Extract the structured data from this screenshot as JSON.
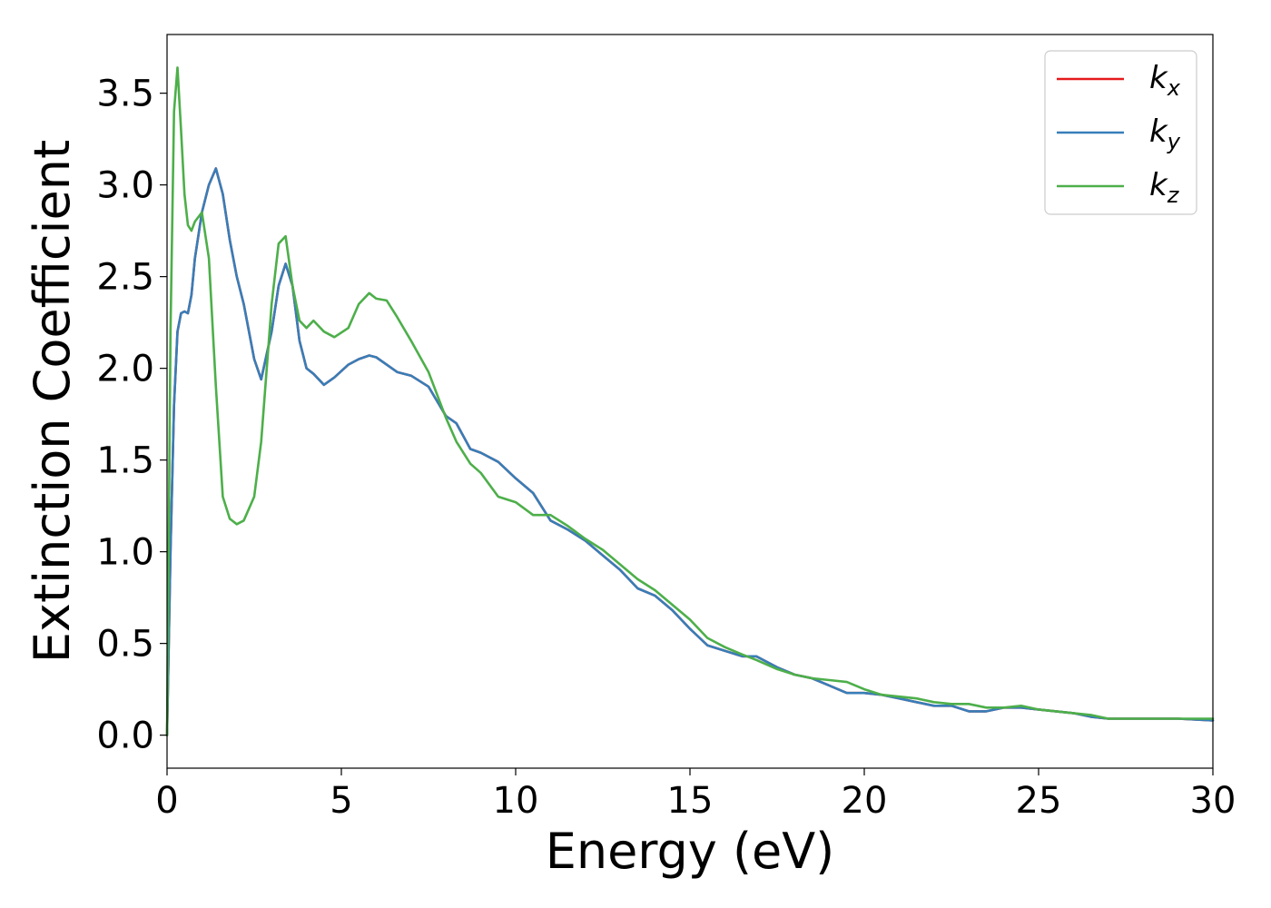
{
  "chart_data": {
    "type": "line",
    "title": "",
    "xlabel": "Energy (eV)",
    "ylabel": "Extinction Coefficient",
    "xlim": [
      0,
      30
    ],
    "ylim": [
      -0.18,
      3.82
    ],
    "xticks": [
      0,
      5,
      10,
      15,
      20,
      25,
      30
    ],
    "yticks": [
      0.0,
      0.5,
      1.0,
      1.5,
      2.0,
      2.5,
      3.0,
      3.5
    ],
    "xtick_labels": [
      "0",
      "5",
      "10",
      "15",
      "20",
      "25",
      "30"
    ],
    "ytick_labels": [
      "0.0",
      "0.5",
      "1.0",
      "1.5",
      "2.0",
      "2.5",
      "3.0",
      "3.5"
    ],
    "grid": false,
    "legend_position": "top-right",
    "colors": {
      "kx": "#e41a1c",
      "ky": "#377eb8",
      "kz": "#4daf4a"
    },
    "series": [
      {
        "name": "k_x",
        "label_main": "k",
        "label_sub": "x",
        "color": "#e41a1c",
        "x": [
          0,
          0.1,
          0.2,
          0.3,
          0.4,
          0.5,
          0.6,
          0.7,
          0.8,
          1.0,
          1.2,
          1.4,
          1.6,
          1.8,
          2.0,
          2.2,
          2.5,
          2.7,
          3.0,
          3.2,
          3.4,
          3.6,
          3.8,
          4.0,
          4.2,
          4.5,
          4.8,
          5.2,
          5.5,
          5.8,
          6.0,
          6.3,
          6.6,
          7.0,
          7.5,
          8.0,
          8.3,
          8.7,
          9.0,
          9.5,
          10.0,
          10.5,
          11.0,
          11.5,
          12.0,
          12.5,
          13.0,
          13.5,
          14.0,
          14.5,
          15.0,
          15.5,
          16.0,
          16.5,
          16.9,
          17.5,
          18.0,
          18.5,
          19.0,
          19.5,
          20.0,
          20.5,
          21.0,
          21.5,
          22.0,
          22.5,
          23.0,
          23.5,
          24.0,
          24.5,
          25.0,
          25.5,
          26.0,
          26.5,
          27.0,
          28.0,
          29.0,
          30.0
        ],
        "y": [
          0.0,
          1.0,
          1.8,
          2.2,
          2.3,
          2.31,
          2.3,
          2.4,
          2.6,
          2.85,
          3.0,
          3.09,
          2.95,
          2.7,
          2.5,
          2.35,
          2.05,
          1.94,
          2.2,
          2.45,
          2.57,
          2.45,
          2.15,
          2.0,
          1.97,
          1.91,
          1.95,
          2.02,
          2.05,
          2.07,
          2.06,
          2.02,
          1.98,
          1.96,
          1.9,
          1.74,
          1.7,
          1.56,
          1.54,
          1.49,
          1.4,
          1.32,
          1.17,
          1.12,
          1.06,
          0.98,
          0.9,
          0.8,
          0.76,
          0.68,
          0.58,
          0.49,
          0.46,
          0.43,
          0.43,
          0.37,
          0.33,
          0.31,
          0.27,
          0.23,
          0.23,
          0.22,
          0.2,
          0.18,
          0.16,
          0.16,
          0.13,
          0.13,
          0.15,
          0.15,
          0.14,
          0.13,
          0.12,
          0.1,
          0.09,
          0.09,
          0.09,
          0.08
        ]
      },
      {
        "name": "k_y",
        "label_main": "k",
        "label_sub": "y",
        "color": "#377eb8",
        "x": [
          0,
          0.1,
          0.2,
          0.3,
          0.4,
          0.5,
          0.6,
          0.7,
          0.8,
          1.0,
          1.2,
          1.4,
          1.6,
          1.8,
          2.0,
          2.2,
          2.5,
          2.7,
          3.0,
          3.2,
          3.4,
          3.6,
          3.8,
          4.0,
          4.2,
          4.5,
          4.8,
          5.2,
          5.5,
          5.8,
          6.0,
          6.3,
          6.6,
          7.0,
          7.5,
          8.0,
          8.3,
          8.7,
          9.0,
          9.5,
          10.0,
          10.5,
          11.0,
          11.5,
          12.0,
          12.5,
          13.0,
          13.5,
          14.0,
          14.5,
          15.0,
          15.5,
          16.0,
          16.5,
          16.9,
          17.5,
          18.0,
          18.5,
          19.0,
          19.5,
          20.0,
          20.5,
          21.0,
          21.5,
          22.0,
          22.5,
          23.0,
          23.5,
          24.0,
          24.5,
          25.0,
          25.5,
          26.0,
          26.5,
          27.0,
          28.0,
          29.0,
          30.0
        ],
        "y": [
          0.0,
          1.0,
          1.8,
          2.2,
          2.3,
          2.31,
          2.3,
          2.4,
          2.6,
          2.85,
          3.0,
          3.09,
          2.95,
          2.7,
          2.5,
          2.35,
          2.05,
          1.94,
          2.2,
          2.45,
          2.57,
          2.45,
          2.15,
          2.0,
          1.97,
          1.91,
          1.95,
          2.02,
          2.05,
          2.07,
          2.06,
          2.02,
          1.98,
          1.96,
          1.9,
          1.74,
          1.7,
          1.56,
          1.54,
          1.49,
          1.4,
          1.32,
          1.17,
          1.12,
          1.06,
          0.98,
          0.9,
          0.8,
          0.76,
          0.68,
          0.58,
          0.49,
          0.46,
          0.43,
          0.43,
          0.37,
          0.33,
          0.31,
          0.27,
          0.23,
          0.23,
          0.22,
          0.2,
          0.18,
          0.16,
          0.16,
          0.13,
          0.13,
          0.15,
          0.15,
          0.14,
          0.13,
          0.12,
          0.1,
          0.09,
          0.09,
          0.09,
          0.08
        ]
      },
      {
        "name": "k_z",
        "label_main": "k",
        "label_sub": "z",
        "color": "#4daf4a",
        "x": [
          0,
          0.1,
          0.2,
          0.3,
          0.4,
          0.5,
          0.6,
          0.7,
          0.8,
          1.0,
          1.2,
          1.4,
          1.6,
          1.8,
          2.0,
          2.2,
          2.5,
          2.7,
          3.0,
          3.2,
          3.4,
          3.6,
          3.8,
          4.0,
          4.2,
          4.5,
          4.8,
          5.2,
          5.5,
          5.8,
          6.0,
          6.3,
          6.6,
          7.0,
          7.5,
          8.0,
          8.3,
          8.7,
          9.0,
          9.5,
          10.0,
          10.5,
          11.0,
          11.5,
          12.0,
          12.5,
          13.0,
          13.5,
          14.0,
          14.5,
          15.0,
          15.5,
          16.0,
          16.5,
          16.9,
          17.5,
          18.0,
          18.5,
          19.0,
          19.5,
          20.0,
          20.5,
          21.0,
          21.5,
          22.0,
          22.5,
          23.0,
          23.5,
          24.0,
          24.5,
          25.0,
          25.5,
          26.0,
          26.5,
          27.0,
          28.0,
          29.0,
          30.0
        ],
        "y": [
          0.0,
          2.2,
          3.4,
          3.64,
          3.3,
          2.95,
          2.78,
          2.75,
          2.8,
          2.85,
          2.6,
          1.9,
          1.3,
          1.18,
          1.15,
          1.17,
          1.3,
          1.6,
          2.35,
          2.68,
          2.72,
          2.45,
          2.26,
          2.22,
          2.26,
          2.2,
          2.17,
          2.22,
          2.35,
          2.41,
          2.38,
          2.37,
          2.28,
          2.15,
          1.98,
          1.73,
          1.6,
          1.48,
          1.43,
          1.3,
          1.27,
          1.2,
          1.2,
          1.14,
          1.07,
          1.01,
          0.93,
          0.85,
          0.79,
          0.71,
          0.63,
          0.53,
          0.48,
          0.44,
          0.41,
          0.36,
          0.33,
          0.31,
          0.3,
          0.29,
          0.25,
          0.22,
          0.21,
          0.2,
          0.18,
          0.17,
          0.17,
          0.15,
          0.15,
          0.16,
          0.14,
          0.13,
          0.12,
          0.11,
          0.09,
          0.09,
          0.09,
          0.09
        ]
      }
    ]
  }
}
